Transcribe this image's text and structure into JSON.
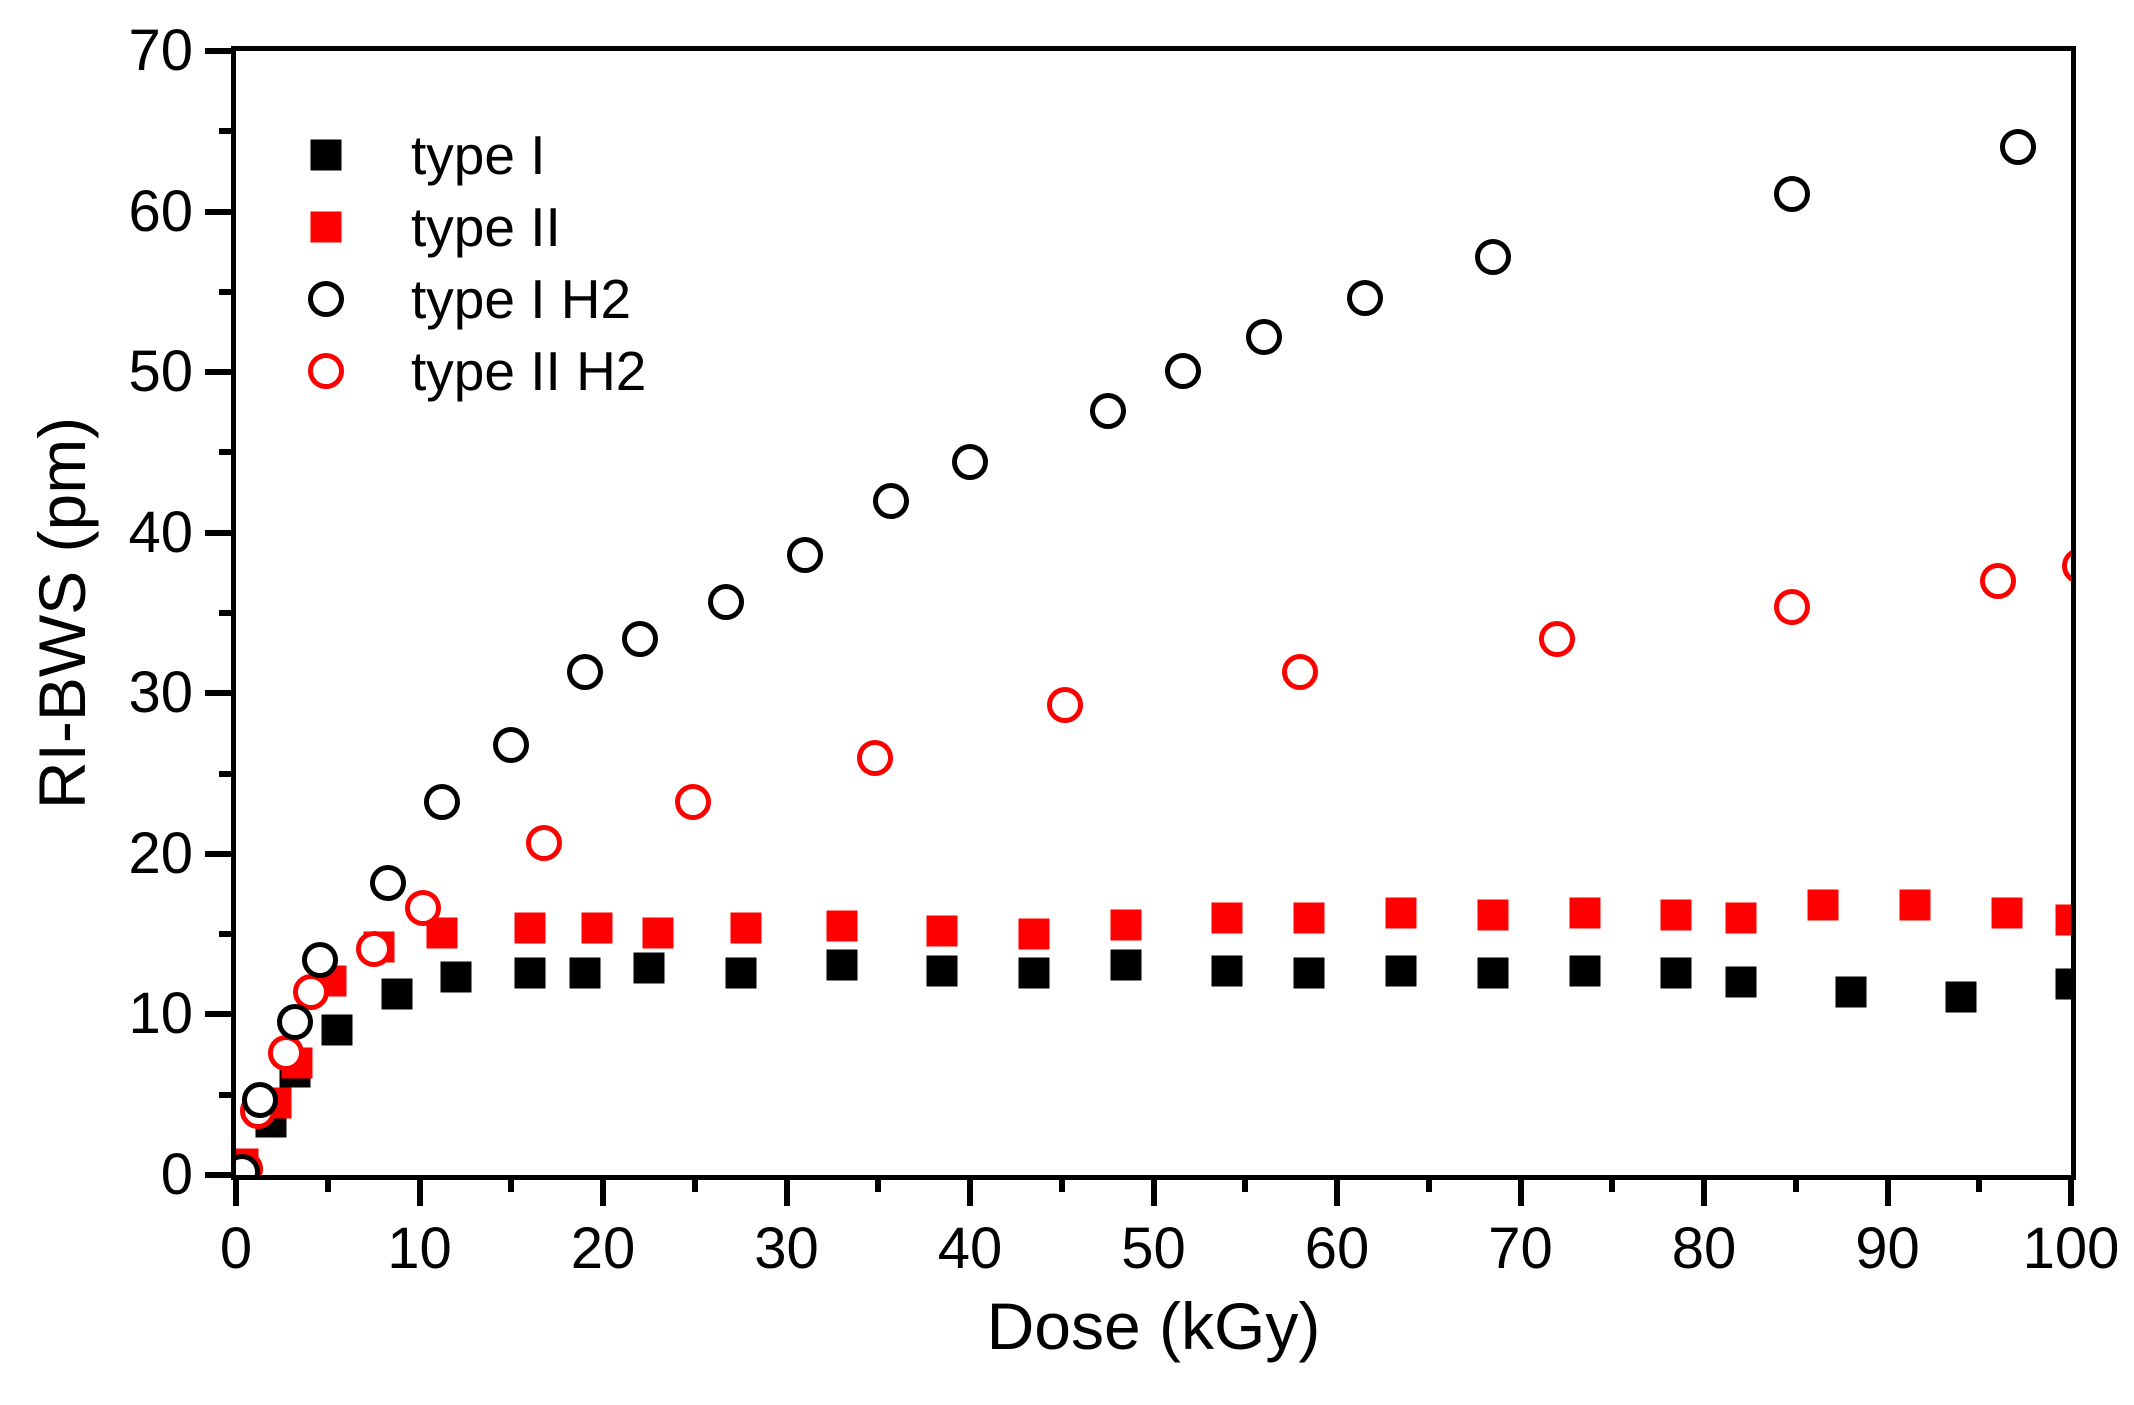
{
  "chart_data": {
    "type": "scatter",
    "title": "",
    "xlabel": "Dose (kGy)",
    "ylabel": "RI-BWS (pm)",
    "xlim": [
      0,
      100
    ],
    "ylim": [
      0,
      70
    ],
    "x_ticks": [
      0,
      10,
      20,
      30,
      40,
      50,
      60,
      70,
      80,
      90,
      100
    ],
    "y_ticks": [
      0,
      10,
      20,
      30,
      40,
      50,
      60,
      70
    ],
    "minor_tick_step": 5,
    "grid": false,
    "legend_position": "upper-left-inside",
    "colors": {
      "black": "#000000",
      "red": "#ff0000"
    },
    "series": [
      {
        "name": "type I",
        "marker": "square",
        "filled": true,
        "color": "#000000",
        "points": [
          [
            1.9,
            3.3
          ],
          [
            3.2,
            6.4
          ],
          [
            5.5,
            9.0
          ],
          [
            8.8,
            11.3
          ],
          [
            12,
            12.3
          ],
          [
            16,
            12.6
          ],
          [
            19,
            12.6
          ],
          [
            22.5,
            12.9
          ],
          [
            27.5,
            12.6
          ],
          [
            33,
            13.1
          ],
          [
            38.5,
            12.7
          ],
          [
            43.5,
            12.6
          ],
          [
            48.5,
            13.1
          ],
          [
            54,
            12.7
          ],
          [
            58.5,
            12.6
          ],
          [
            63.5,
            12.7
          ],
          [
            68.5,
            12.6
          ],
          [
            73.5,
            12.7
          ],
          [
            78.5,
            12.6
          ],
          [
            82,
            12.0
          ],
          [
            88,
            11.4
          ],
          [
            94,
            11.1
          ],
          [
            100,
            11.9
          ]
        ]
      },
      {
        "name": "type II",
        "marker": "square",
        "filled": true,
        "color": "#ff0000",
        "points": [
          [
            0.4,
            0.7
          ],
          [
            2.2,
            4.5
          ],
          [
            3.3,
            7.0
          ],
          [
            5.2,
            12.1
          ],
          [
            7.8,
            14.2
          ],
          [
            11.2,
            15.1
          ],
          [
            16,
            15.4
          ],
          [
            19.7,
            15.4
          ],
          [
            23,
            15.1
          ],
          [
            27.8,
            15.4
          ],
          [
            33,
            15.5
          ],
          [
            38.5,
            15.2
          ],
          [
            43.5,
            15.0
          ],
          [
            48.5,
            15.6
          ],
          [
            54,
            16.0
          ],
          [
            58.5,
            16.0
          ],
          [
            63.5,
            16.3
          ],
          [
            68.5,
            16.2
          ],
          [
            73.5,
            16.3
          ],
          [
            78.5,
            16.2
          ],
          [
            82,
            16.0
          ],
          [
            86.5,
            16.8
          ],
          [
            91.5,
            16.8
          ],
          [
            96.5,
            16.3
          ],
          [
            100,
            15.9
          ]
        ]
      },
      {
        "name": "type I H2",
        "marker": "circle",
        "filled": false,
        "color": "#000000",
        "points": [
          [
            0.3,
            0.2
          ],
          [
            1.3,
            4.7
          ],
          [
            3.2,
            9.5
          ],
          [
            4.6,
            13.4
          ],
          [
            8.3,
            18.2
          ],
          [
            11.2,
            23.2
          ],
          [
            15,
            26.8
          ],
          [
            19,
            31.3
          ],
          [
            22,
            33.4
          ],
          [
            26.7,
            35.7
          ],
          [
            31,
            38.6
          ],
          [
            35.7,
            42.0
          ],
          [
            40,
            44.4
          ],
          [
            47.5,
            47.6
          ],
          [
            51.6,
            50.1
          ],
          [
            56,
            52.2
          ],
          [
            61.5,
            54.6
          ],
          [
            68.5,
            57.2
          ],
          [
            84.8,
            61.1
          ],
          [
            97.1,
            64.0
          ]
        ]
      },
      {
        "name": "type II H2",
        "marker": "circle",
        "filled": false,
        "color": "#ff0000",
        "points": [
          [
            0.5,
            0.4
          ],
          [
            1.2,
            4.0
          ],
          [
            2.7,
            7.6
          ],
          [
            4.1,
            11.4
          ],
          [
            7.5,
            14.1
          ],
          [
            10.2,
            16.6
          ],
          [
            16.8,
            20.7
          ],
          [
            24.9,
            23.2
          ],
          [
            34.8,
            26.0
          ],
          [
            45.2,
            29.3
          ],
          [
            58,
            31.3
          ],
          [
            72,
            33.4
          ],
          [
            84.8,
            35.4
          ],
          [
            96,
            37.0
          ],
          [
            100.5,
            37.9
          ]
        ]
      }
    ]
  }
}
